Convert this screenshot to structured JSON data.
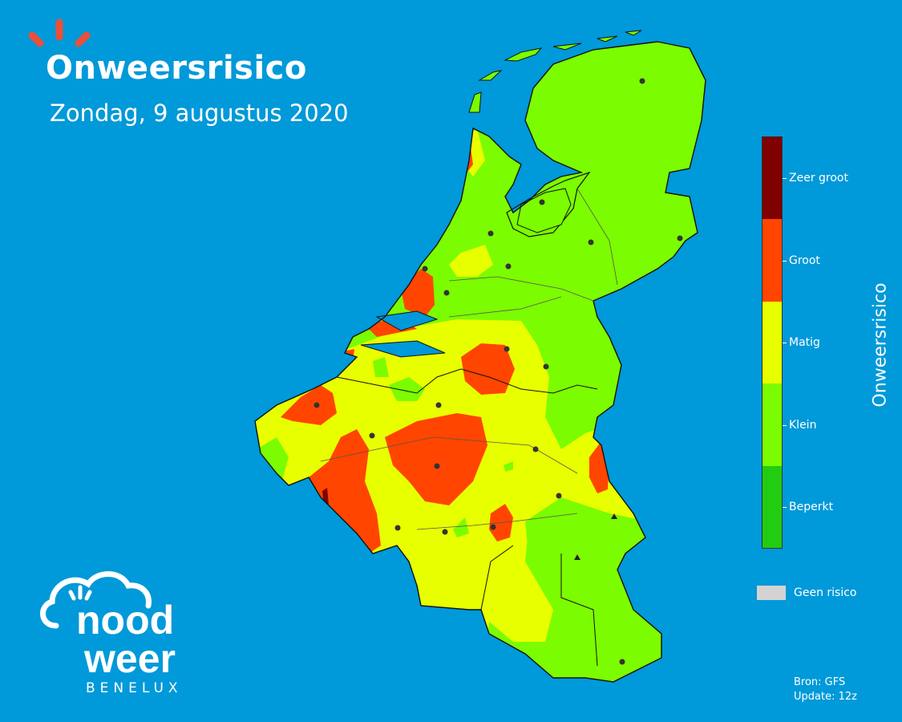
{
  "header": {
    "title": "Onweersrisico",
    "subtitle": "Zondag, 9 augustus 2020"
  },
  "legend": {
    "title": "Onweersrisico",
    "levels": [
      {
        "label": "Zeer groot",
        "color": "#800000"
      },
      {
        "label": "Groot",
        "color": "#ff4500"
      },
      {
        "label": "Matig",
        "color": "#e8ff00"
      },
      {
        "label": "Klein",
        "color": "#7cfc00"
      },
      {
        "label": "Beperkt",
        "color": "#22cc11"
      }
    ],
    "none_label": "Geen risico",
    "none_color": "#d3d3d3"
  },
  "source": {
    "line1": "Bron: GFS",
    "line2": "Update: 12z"
  },
  "logo": {
    "word1": "nood",
    "word2": "weer",
    "sub": "BENELUX"
  },
  "colors": {
    "sea": "#0099d9",
    "brand_orange": "#e8503a"
  }
}
